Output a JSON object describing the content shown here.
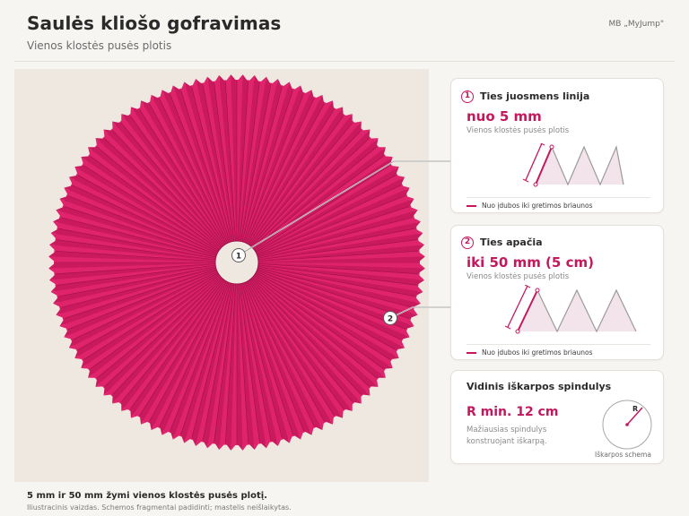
{
  "header": {
    "title": "Saulės kliošo gofravimas",
    "subtitle": "Vienos klostės pusės plotis",
    "brand": "MB „MyJump\""
  },
  "photo": {
    "markers": [
      "1",
      "2"
    ],
    "colors": {
      "fabric": "#d81e64",
      "fabric_dark": "#9e1148",
      "background": "#efe8e1"
    }
  },
  "cards": {
    "waist": {
      "number": "1",
      "heading": "Ties juosmens linija",
      "value": "nuo 5 mm",
      "desc": "Vienos klostės pusės plotis",
      "legend": "Nuo įdubos iki gretimos briaunos"
    },
    "hem": {
      "number": "2",
      "heading": "Ties apačia",
      "value": "iki 50 mm (5 cm)",
      "desc": "Vienos klostės pusės plotis",
      "legend": "Nuo įdubos iki gretimos briaunos"
    },
    "radius": {
      "heading": "Vidinis iškarpos spindulys",
      "value": "R min. 12 cm",
      "desc": "Mažiausias spindulys konstruojant iškarpą.",
      "schema_label": "R",
      "caption": "Iškarpos schema"
    }
  },
  "footer": {
    "note": "5 mm ir 50 mm žymi vienos klostės pusės plotį.",
    "disclaimer": "Iliustracinis vaizdas. Schemos fragmentai padidinti; mastelis neišlaikytas."
  },
  "accent_color": "#c4185e"
}
